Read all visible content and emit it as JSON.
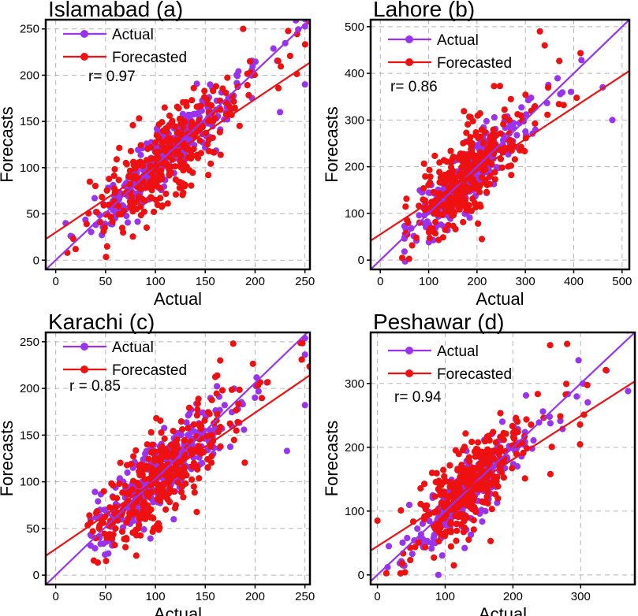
{
  "colors": {
    "actual": "#9933ee",
    "forecasted": "#ee1111"
  },
  "chart_data": [
    {
      "type": "scatter",
      "title": "Islamabad (a)",
      "xlabel": "Actual",
      "ylabel": "Forecasts",
      "xlim": [
        -10,
        255
      ],
      "ylim": [
        -10,
        260
      ],
      "xticks": [
        0,
        50,
        100,
        150,
        200,
        250
      ],
      "yticks": [
        0,
        50,
        100,
        150,
        200,
        250
      ],
      "grid": true,
      "legend": [
        "Actual",
        "Forecasted"
      ],
      "legend_position": "top-left",
      "annotation": "r= 0.97",
      "actual_fit": {
        "slope": 1.02,
        "intercept": 0
      },
      "forecast_fit": {
        "slope": 0.72,
        "intercept": 30
      },
      "cloud": {
        "x_center": 105,
        "x_spread": 38,
        "x_min": 15,
        "x_max": 250,
        "noise_actual": 15,
        "noise_forecast": 22,
        "n": 330,
        "seed": 11
      },
      "notable_points": [
        {
          "series": "Forecasted",
          "x": 188,
          "y": 250
        },
        {
          "series": "Actual",
          "x": 250,
          "y": 190
        },
        {
          "series": "Actual",
          "x": 225,
          "y": 160
        },
        {
          "series": "Actual",
          "x": 10,
          "y": 40
        },
        {
          "series": "Forecasted",
          "x": 20,
          "y": 12
        }
      ]
    },
    {
      "type": "scatter",
      "title": "Lahore (b)",
      "xlabel": "Actual",
      "ylabel": "Forecasts",
      "xlim": [
        -20,
        515
      ],
      "ylim": [
        -20,
        515
      ],
      "xticks": [
        0,
        100,
        200,
        300,
        400,
        500
      ],
      "yticks": [
        0,
        100,
        200,
        300,
        400,
        500
      ],
      "grid": true,
      "legend": [
        "Actual",
        "Forecasted"
      ],
      "legend_position": "top-left",
      "annotation": "r= 0.86",
      "actual_fit": {
        "slope": 1.0,
        "intercept": 0
      },
      "forecast_fit": {
        "slope": 0.68,
        "intercept": 55
      },
      "cloud": {
        "x_center": 165,
        "x_spread": 55,
        "x_min": 50,
        "x_max": 480,
        "noise_actual": 30,
        "noise_forecast": 45,
        "n": 330,
        "seed": 23
      },
      "notable_points": [
        {
          "series": "Forecasted",
          "x": 330,
          "y": 490
        },
        {
          "series": "Forecasted",
          "x": 340,
          "y": 460
        },
        {
          "series": "Actual",
          "x": 460,
          "y": 370
        },
        {
          "series": "Actual",
          "x": 480,
          "y": 300
        },
        {
          "series": "Forecasted",
          "x": 210,
          "y": 45
        }
      ]
    },
    {
      "type": "scatter",
      "title": "Karachi (c)",
      "xlabel": "Actual",
      "ylabel": "Forecasts",
      "xlim": [
        -10,
        255
      ],
      "ylim": [
        -10,
        260
      ],
      "xticks": [
        0,
        50,
        100,
        150,
        200,
        250
      ],
      "yticks": [
        0,
        50,
        100,
        150,
        200,
        250
      ],
      "grid": true,
      "legend": [
        "Actual",
        "Forecasted"
      ],
      "legend_position": "top-left",
      "annotation": "r = 0.85",
      "actual_fit": {
        "slope": 1.03,
        "intercept": 0
      },
      "forecast_fit": {
        "slope": 0.73,
        "intercept": 28
      },
      "cloud": {
        "x_center": 100,
        "x_spread": 35,
        "x_min": 35,
        "x_max": 250,
        "noise_actual": 20,
        "noise_forecast": 25,
        "n": 330,
        "seed": 37
      },
      "notable_points": [
        {
          "series": "Forecasted",
          "x": 178,
          "y": 248
        },
        {
          "series": "Forecasted",
          "x": 165,
          "y": 230
        },
        {
          "series": "Actual",
          "x": 250,
          "y": 182
        },
        {
          "series": "Actual",
          "x": 232,
          "y": 133
        },
        {
          "series": "Forecasted",
          "x": 70,
          "y": 30
        }
      ]
    },
    {
      "type": "scatter",
      "title": "Peshawar (d)",
      "xlabel": "Actual",
      "ylabel": "Forecasts",
      "xlim": [
        -10,
        380
      ],
      "ylim": [
        -15,
        380
      ],
      "xticks": [
        0,
        100,
        200,
        300
      ],
      "yticks": [
        0,
        100,
        200,
        300
      ],
      "grid": true,
      "legend": [
        "Actual",
        "Forecasted"
      ],
      "legend_position": "top-left",
      "annotation": "r= 0.94",
      "actual_fit": {
        "slope": 1.0,
        "intercept": 0
      },
      "forecast_fit": {
        "slope": 0.68,
        "intercept": 45
      },
      "cloud": {
        "x_center": 130,
        "x_spread": 45,
        "x_min": 10,
        "x_max": 370,
        "noise_actual": 25,
        "noise_forecast": 35,
        "n": 330,
        "seed": 53
      },
      "notable_points": [
        {
          "series": "Forecasted",
          "x": 280,
          "y": 362
        },
        {
          "series": "Forecasted",
          "x": 255,
          "y": 360
        },
        {
          "series": "Actual",
          "x": 370,
          "y": 288
        },
        {
          "series": "Actual",
          "x": 15,
          "y": 12
        },
        {
          "series": "Forecasted",
          "x": 0,
          "y": 85
        },
        {
          "series": "Actual",
          "x": 90,
          "y": 0
        }
      ]
    }
  ]
}
